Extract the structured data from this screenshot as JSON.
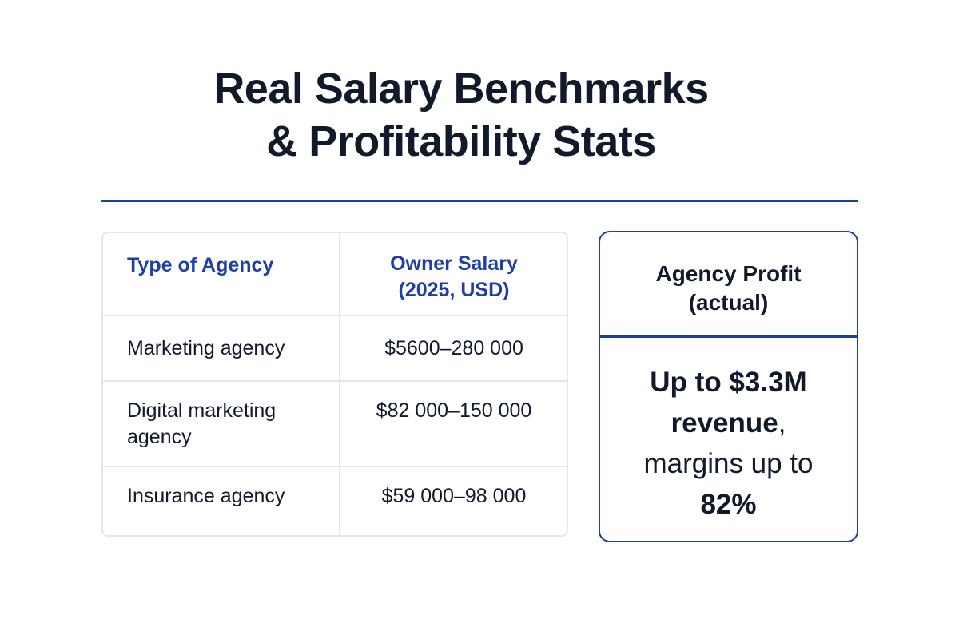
{
  "header": {
    "title_lines": [
      "Real Salary Benchmarks",
      "& Profitability Stats"
    ]
  },
  "table": {
    "columns": [
      "Type of Agency",
      "Owner Salary (2025, USD)"
    ],
    "rows": [
      [
        "Marketing agency",
        "$5600–280 000"
      ],
      [
        "Digital marketing agency",
        "$82 000–150 000"
      ],
      [
        "Insurance agency",
        "$59 000–98 000"
      ]
    ]
  },
  "card": {
    "title": "Agency Profit (actual)",
    "body": [
      {
        "text": "Up to $3.3M revenue",
        "bold": true
      },
      {
        "text": ", margins up to ",
        "bold": false
      },
      {
        "text": "82%",
        "bold": true
      }
    ]
  }
}
